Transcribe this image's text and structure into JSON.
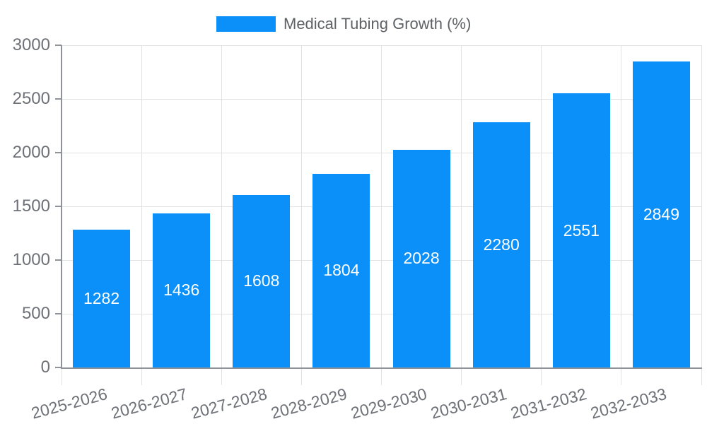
{
  "chart_data": {
    "type": "bar",
    "title": "Medical Tubing Growth (%)",
    "legend": {
      "position": "top",
      "entries": [
        "Medical Tubing Growth (%)"
      ]
    },
    "categories": [
      "2025-2026",
      "2026-2027",
      "2027-2028",
      "2028-2029",
      "2029-2030",
      "2030-2031",
      "2031-2032",
      "2032-2033"
    ],
    "values": [
      1282,
      1436,
      1608,
      1804,
      2028,
      2280,
      2551,
      2849
    ],
    "bar_labels": [
      "1282",
      "1436",
      "1608",
      "1804",
      "2028",
      "2280",
      "2551",
      "2849"
    ],
    "xlabel": "",
    "ylabel": "",
    "ylim": [
      0,
      3000
    ],
    "yticks": [
      0,
      500,
      1000,
      1500,
      2000,
      2500,
      3000
    ],
    "grid": true,
    "x_label_rotation_deg": -15,
    "bar_label_position": "inside-center",
    "colors": {
      "bar": "#0a90f8",
      "bar_label": "#ffffff",
      "axis_text": "#6e7177",
      "legend_text": "#5e6166",
      "grid_line": "#e2e2e2",
      "axis_line": "#8f9399",
      "background": "#ffffff"
    }
  }
}
